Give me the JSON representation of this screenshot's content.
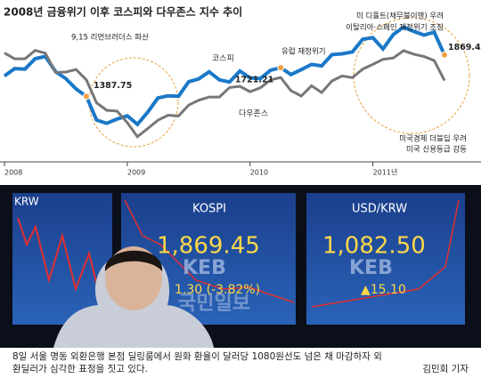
{
  "chart_data": {
    "type": "line",
    "title": "2008년 금융위기 이후 코스피와 다우존스 지수 추이",
    "x": [
      2008,
      2008.083,
      2008.167,
      2008.25,
      2008.333,
      2008.417,
      2008.5,
      2008.583,
      2008.667,
      2008.75,
      2008.833,
      2008.917,
      2009,
      2009.083,
      2009.167,
      2009.25,
      2009.333,
      2009.417,
      2009.5,
      2009.583,
      2009.667,
      2009.75,
      2009.833,
      2009.917,
      2010,
      2010.083,
      2010.167,
      2010.25,
      2010.333,
      2010.417,
      2010.5,
      2010.583,
      2010.667,
      2010.75,
      2010.833,
      2010.917,
      2011,
      2011.083,
      2011.167,
      2011.25,
      2011.333,
      2011.417,
      2011.5,
      2011.583
    ],
    "xlim": [
      2008,
      2011.75
    ],
    "xticks": [
      2008,
      2009,
      2010,
      {
        "value": 2011,
        "label": "2011년"
      }
    ],
    "series": [
      {
        "name": "코스피",
        "color": "#1a78c8",
        "values": [
          1625,
          1711,
          1704,
          1825,
          1852,
          1674,
          1594,
          1474,
          1387.75,
          1113,
          1076,
          1124,
          1162,
          1063,
          1206,
          1369,
          1395,
          1390,
          1557,
          1591,
          1673,
          1580,
          1555,
          1682,
          1602,
          1594,
          1692,
          1721.21,
          1641,
          1698,
          1759,
          1742,
          1873,
          1882,
          1904,
          2051,
          2069,
          1939,
          2106,
          2192,
          2142,
          2100,
          2133,
          1869.45
        ]
      },
      {
        "name": "다우존스",
        "color": "#777777",
        "axis": "y2",
        "values": [
          12650,
          12266,
          12263,
          12820,
          12638,
          11350,
          11378,
          11544,
          10851,
          9325,
          8829,
          8776,
          8001,
          7063,
          7609,
          8168,
          8500,
          8447,
          9172,
          9496,
          9712,
          9713,
          10344,
          10428,
          10067,
          10325,
          10857,
          11009,
          10137,
          9774,
          10466,
          10015,
          10788,
          11118,
          11006,
          11578,
          11892,
          12226,
          12320,
          12811,
          12570,
          12414,
          12143,
          10810
        ]
      }
    ],
    "ylim": [
      700,
      2300
    ],
    "y2lim": [
      5800,
      15000
    ],
    "annotations": [
      "9,15 리먼브러더스 파산",
      "유럽 재정위기",
      "미 디폴트(채무불이행) 우려",
      "이탈리아·스페인 재정위기 조짐",
      "미국경제 더블딥 우려",
      "미국 신용등급 강등"
    ]
  },
  "photo": {
    "left_screen": "KRW",
    "kospi": {
      "label": "KOSPI",
      "value": "1,869.45",
      "change": "1.30 (-3.82%)",
      "logo": "KEB"
    },
    "usdkrw": {
      "label": "USD/KRW",
      "value": "1,082.50",
      "change": "▲15.10",
      "logo": "KEB"
    },
    "watermark": "국민일보"
  },
  "caption": {
    "lines": [
      "8일 서울 명동 외환은행 본점 딜링룸에서 원화 환율이 달러당 1080원선도 넘은 채 마감하자 외",
      "환딜러가 심각한 표정을 짓고 있다."
    ],
    "credit": "김민회 기자"
  }
}
